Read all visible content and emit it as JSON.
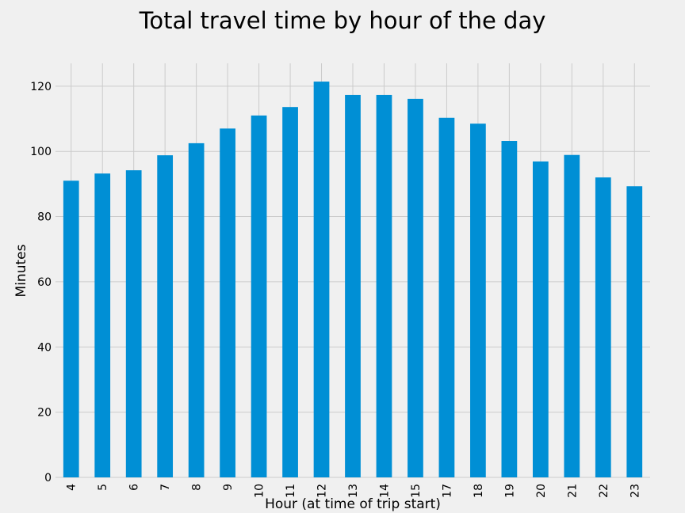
{
  "chart_data": {
    "type": "bar",
    "title": "Total travel time by hour of the day",
    "xlabel": "Hour (at time of trip start)",
    "ylabel": "Minutes",
    "categories": [
      "4",
      "5",
      "6",
      "7",
      "8",
      "9",
      "10",
      "11",
      "12",
      "13",
      "14",
      "15",
      "17",
      "18",
      "19",
      "20",
      "21",
      "22",
      "23"
    ],
    "values": [
      91,
      93.2,
      94.2,
      98.8,
      102.5,
      107,
      111,
      113.6,
      121.4,
      117.3,
      117.3,
      116.1,
      110.3,
      108.5,
      103.2,
      96.9,
      98.9,
      92,
      89.3
    ],
    "ylim": [
      0,
      127
    ],
    "yticks": [
      "0",
      "20",
      "40",
      "60",
      "80",
      "100",
      "120"
    ],
    "grid": true,
    "legend": "none",
    "bar_color": "#008fd5",
    "background": "#f0f0f0",
    "grid_color": "#cbcbcb"
  }
}
